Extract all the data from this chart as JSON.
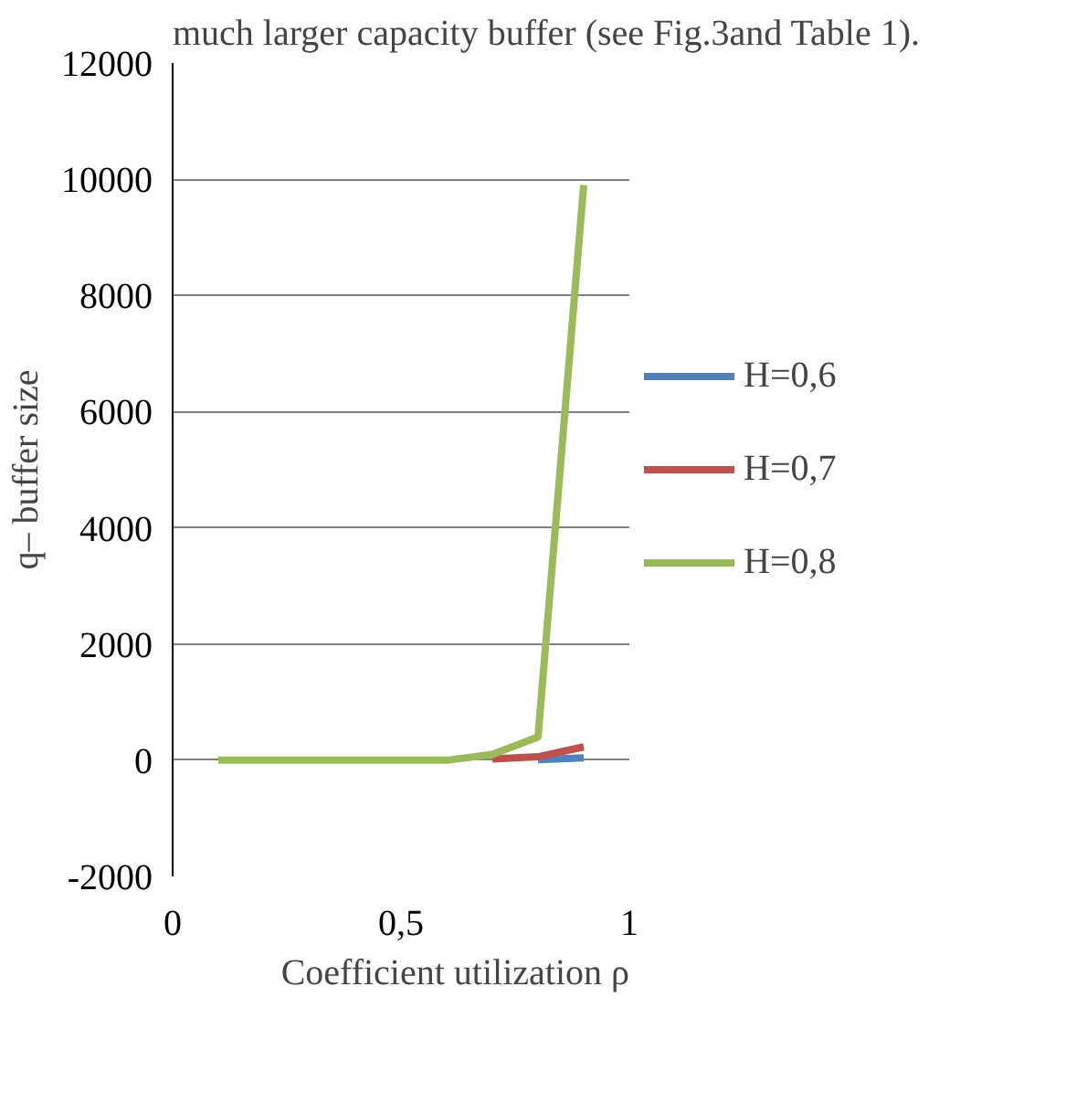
{
  "chart_data": {
    "type": "line",
    "xlabel": "Coefficient utilization ρ",
    "ylabel": "q– buffer size",
    "annotations": [
      "much larger capacity buffer (see Fig.3and Table 1)."
    ],
    "x": [
      0.1,
      0.2,
      0.3,
      0.4,
      0.5,
      0.6,
      0.7,
      0.8,
      0.9
    ],
    "series": [
      {
        "name": "H=0,6",
        "color": "#4f81bd",
        "values": [
          null,
          null,
          null,
          null,
          null,
          null,
          null,
          10,
          40
        ]
      },
      {
        "name": "H=0,7",
        "color": "#c0504d",
        "values": [
          null,
          null,
          null,
          null,
          null,
          null,
          20,
          60,
          230
        ]
      },
      {
        "name": "H=0,8",
        "color": "#9bbb59",
        "values": [
          0,
          0,
          0,
          0,
          0,
          0,
          100,
          400,
          9900
        ]
      }
    ],
    "xlim": [
      0,
      1
    ],
    "xticks": [
      0,
      {
        "value": 0.5,
        "label": "0,5"
      },
      1
    ],
    "ylim": [
      -2000,
      12000
    ],
    "yticks": [
      -2000,
      0,
      2000,
      4000,
      6000,
      8000,
      10000,
      12000
    ],
    "grid": "y",
    "legend": "right",
    "marker": "none",
    "line_style": "solid"
  }
}
